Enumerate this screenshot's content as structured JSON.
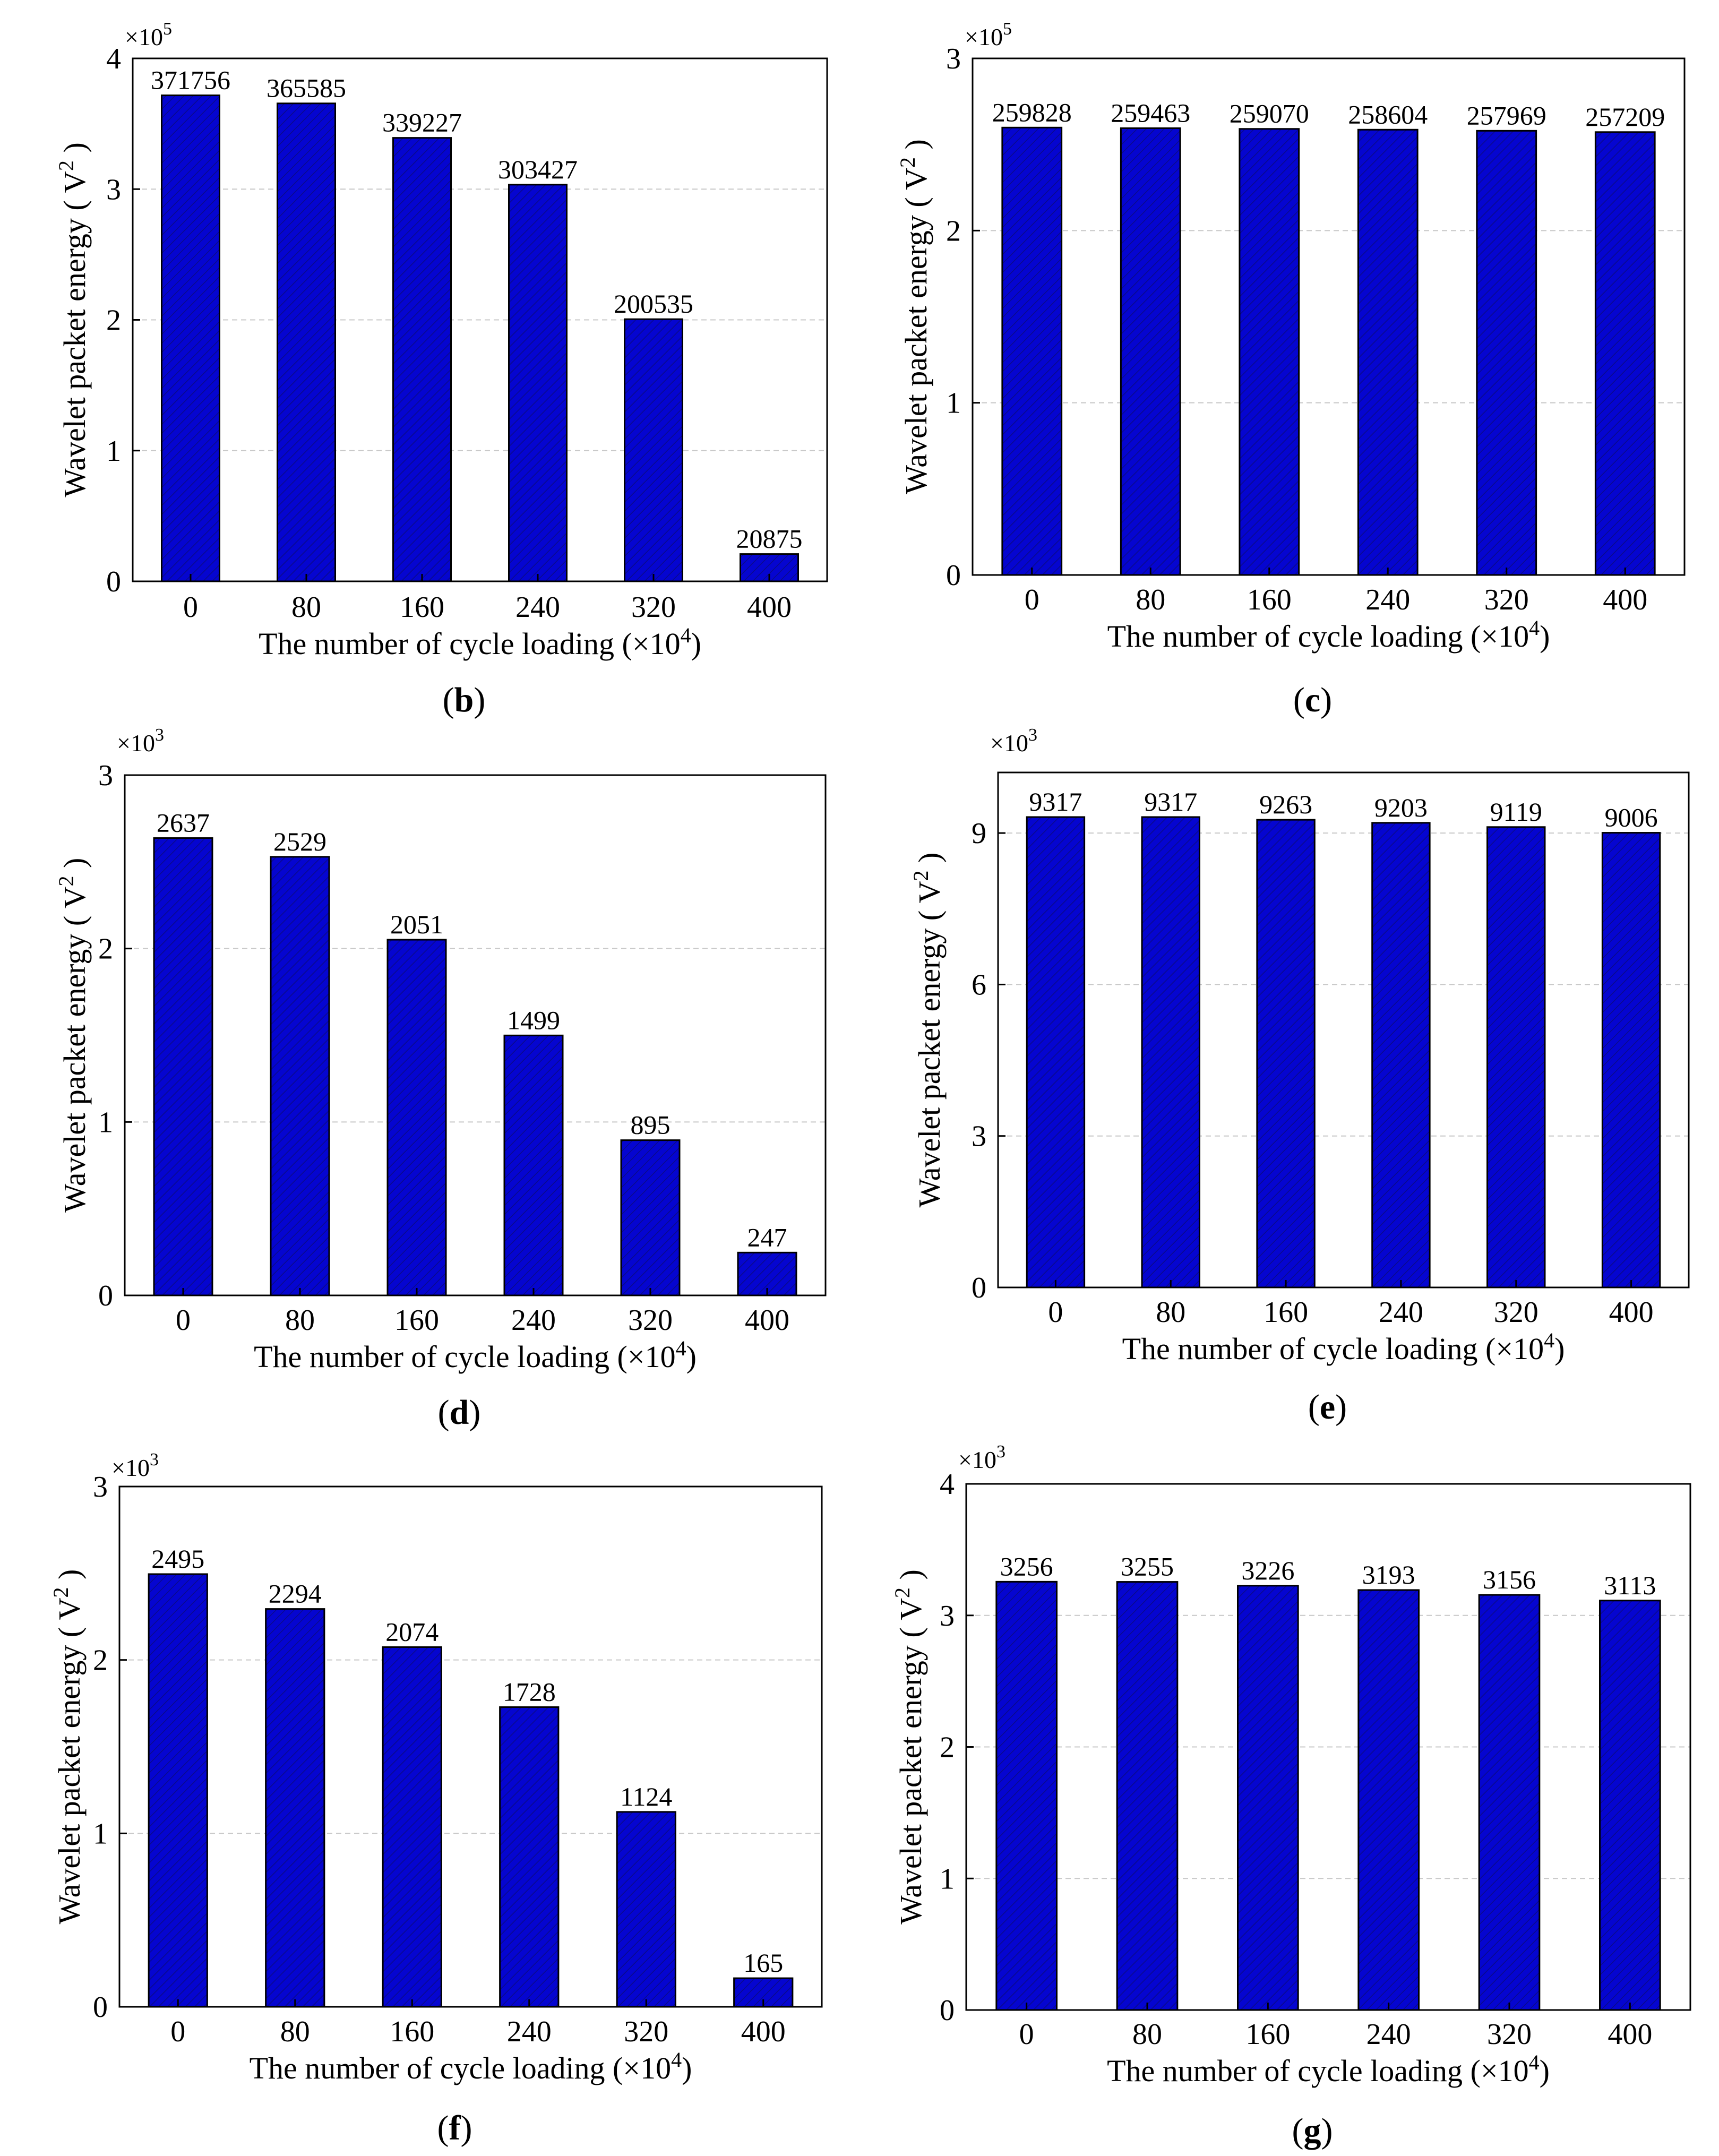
{
  "colors": {
    "bar_fill": "#0505d0",
    "bar_hatch": "#0a0a8a",
    "grid": "#c8c8c8",
    "axis": "#000000"
  },
  "chart_data": [
    {
      "id": "b",
      "type": "bar",
      "panel_open": "(",
      "panel_letter": "b",
      "panel_close": ")",
      "title": "",
      "xlabel": "The number of cycle loading (×10",
      "xlabel_exp": "4",
      "xlabel_close": ")",
      "ylabel": "Wavelet packet energy ( V",
      "ylabel_exp": "2",
      "ylabel_close": " )",
      "multiplier_base": "×10",
      "multiplier_exp": "5",
      "scale": 100000,
      "categories": [
        "0",
        "80",
        "160",
        "240",
        "320",
        "400"
      ],
      "values": [
        371756,
        365585,
        339227,
        303427,
        200535,
        20875
      ],
      "data_labels": [
        "371756",
        "365585",
        "339227",
        "303427",
        "200535",
        "20875"
      ],
      "ylim": [
        0,
        4
      ],
      "yticks": [
        {
          "v": 0,
          "label": "0"
        },
        {
          "v": 1,
          "label": "1"
        },
        {
          "v": 2,
          "label": "2"
        },
        {
          "v": 3,
          "label": "3"
        },
        {
          "v": 4,
          "label": "4"
        }
      ],
      "grid": true
    },
    {
      "id": "c",
      "type": "bar",
      "panel_open": "(",
      "panel_letter": "c",
      "panel_close": ")",
      "title": "",
      "xlabel": "The number of cycle loading (×10",
      "xlabel_exp": "4",
      "xlabel_close": ")",
      "ylabel": "Wavelet packet energy ( V",
      "ylabel_exp": "2",
      "ylabel_close": " )",
      "multiplier_base": "×10",
      "multiplier_exp": "5",
      "scale": 100000,
      "categories": [
        "0",
        "80",
        "160",
        "240",
        "320",
        "400"
      ],
      "values": [
        259828,
        259463,
        259070,
        258604,
        257969,
        257209
      ],
      "data_labels": [
        "259828",
        "259463",
        "259070",
        "258604",
        "257969",
        "257209"
      ],
      "ylim": [
        0,
        3
      ],
      "yticks": [
        {
          "v": 0,
          "label": "0"
        },
        {
          "v": 1,
          "label": "1"
        },
        {
          "v": 2,
          "label": "2"
        },
        {
          "v": 3,
          "label": "3"
        }
      ],
      "grid": true
    },
    {
      "id": "d",
      "type": "bar",
      "panel_open": "(",
      "panel_letter": "d",
      "panel_close": ")",
      "title": "",
      "xlabel": "The number of cycle loading (×10",
      "xlabel_exp": "4",
      "xlabel_close": ")",
      "ylabel": "Wavelet packet energy ( V",
      "ylabel_exp": "2",
      "ylabel_close": " )",
      "multiplier_base": "×10",
      "multiplier_exp": "3",
      "scale": 1000,
      "categories": [
        "0",
        "80",
        "160",
        "240",
        "320",
        "400"
      ],
      "values": [
        2637,
        2529,
        2051,
        1499,
        895,
        247
      ],
      "data_labels": [
        "2637",
        "2529",
        "2051",
        "1499",
        "895",
        "247"
      ],
      "ylim": [
        0,
        3
      ],
      "yticks": [
        {
          "v": 0,
          "label": "0"
        },
        {
          "v": 1,
          "label": "1"
        },
        {
          "v": 2,
          "label": "2"
        },
        {
          "v": 3,
          "label": "3"
        }
      ],
      "grid": true
    },
    {
      "id": "e",
      "type": "bar",
      "panel_open": "(",
      "panel_letter": "e",
      "panel_close": ")",
      "title": "",
      "xlabel": "The number of cycle loading (×10",
      "xlabel_exp": "4",
      "xlabel_close": ")",
      "ylabel": "Wavelet packet energy ( V",
      "ylabel_exp": "2",
      "ylabel_close": " )",
      "multiplier_base": "×10",
      "multiplier_exp": "3",
      "scale": 1000,
      "categories": [
        "0",
        "80",
        "160",
        "240",
        "320",
        "400"
      ],
      "values": [
        9317,
        9317,
        9263,
        9203,
        9119,
        9006
      ],
      "data_labels": [
        "9317",
        "9317",
        "9263",
        "9203",
        "9119",
        "9006"
      ],
      "ylim": [
        0,
        10.2
      ],
      "yticks": [
        {
          "v": 0,
          "label": "0"
        },
        {
          "v": 3,
          "label": "3"
        },
        {
          "v": 6,
          "label": "6"
        },
        {
          "v": 9,
          "label": "9"
        }
      ],
      "grid": true
    },
    {
      "id": "f",
      "type": "bar",
      "panel_open": "(",
      "panel_letter": "f",
      "panel_close": ")",
      "title": "",
      "xlabel": "The number of cycle loading (×10",
      "xlabel_exp": "4",
      "xlabel_close": ")",
      "ylabel": "Wavelet packet energy ( V",
      "ylabel_exp": "2",
      "ylabel_close": " )",
      "multiplier_base": "×10",
      "multiplier_exp": "3",
      "scale": 1000,
      "categories": [
        "0",
        "80",
        "160",
        "240",
        "320",
        "400"
      ],
      "values": [
        2495,
        2294,
        2074,
        1728,
        1124,
        165
      ],
      "data_labels": [
        "2495",
        "2294",
        "2074",
        "1728",
        "1124",
        "165"
      ],
      "ylim": [
        0,
        3
      ],
      "yticks": [
        {
          "v": 0,
          "label": "0"
        },
        {
          "v": 1,
          "label": "1"
        },
        {
          "v": 2,
          "label": "2"
        },
        {
          "v": 3,
          "label": "3"
        }
      ],
      "grid": true
    },
    {
      "id": "g",
      "type": "bar",
      "panel_open": "(",
      "panel_letter": "g",
      "panel_close": ")",
      "title": "",
      "xlabel": "The number of cycle loading (×10",
      "xlabel_exp": "4",
      "xlabel_close": ")",
      "ylabel": "Wavelet packet energy ( V",
      "ylabel_exp": "2",
      "ylabel_close": " )",
      "multiplier_base": "×10",
      "multiplier_exp": "3",
      "scale": 1000,
      "categories": [
        "0",
        "80",
        "160",
        "240",
        "320",
        "400"
      ],
      "values": [
        3256,
        3255,
        3226,
        3193,
        3156,
        3113
      ],
      "data_labels": [
        "3256",
        "3255",
        "3226",
        "3193",
        "3156",
        "3113"
      ],
      "ylim": [
        0,
        4
      ],
      "yticks": [
        {
          "v": 0,
          "label": "0"
        },
        {
          "v": 1,
          "label": "1"
        },
        {
          "v": 2,
          "label": "2"
        },
        {
          "v": 3,
          "label": "3"
        },
        {
          "v": 4,
          "label": "4"
        }
      ],
      "grid": true
    }
  ]
}
